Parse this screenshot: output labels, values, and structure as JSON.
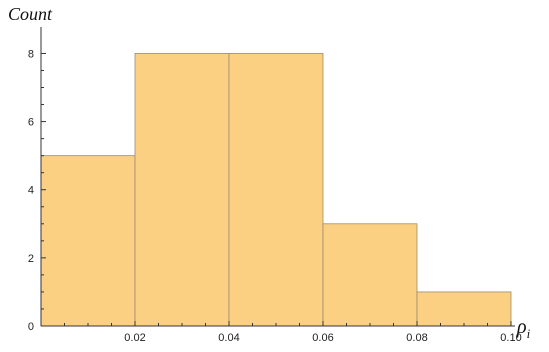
{
  "chart_data": {
    "type": "bar",
    "bins": [
      {
        "from": 0.0,
        "to": 0.02,
        "count": 5
      },
      {
        "from": 0.02,
        "to": 0.04,
        "count": 8
      },
      {
        "from": 0.04,
        "to": 0.06,
        "count": 8
      },
      {
        "from": 0.06,
        "to": 0.08,
        "count": 3
      },
      {
        "from": 0.08,
        "to": 0.1,
        "count": 1
      }
    ],
    "xlabel_base": "ρ",
    "xlabel_sub": "i",
    "ylabel": "Count",
    "xlim": [
      0,
      0.1
    ],
    "ylim": [
      0,
      8.6
    ],
    "x_ticks": [
      0.02,
      0.04,
      0.06,
      0.08,
      0.1
    ],
    "x_tick_labels": [
      "0.02",
      "0.04",
      "0.06",
      "0.08",
      "0.10"
    ],
    "y_ticks": [
      0,
      2,
      4,
      6,
      8
    ],
    "y_tick_labels": [
      "0",
      "2",
      "4",
      "6",
      "8"
    ],
    "grid": false,
    "colors": {
      "bar_fill": "#fcd083",
      "bar_edge": "#9c8c70",
      "axis": "#333333"
    }
  }
}
